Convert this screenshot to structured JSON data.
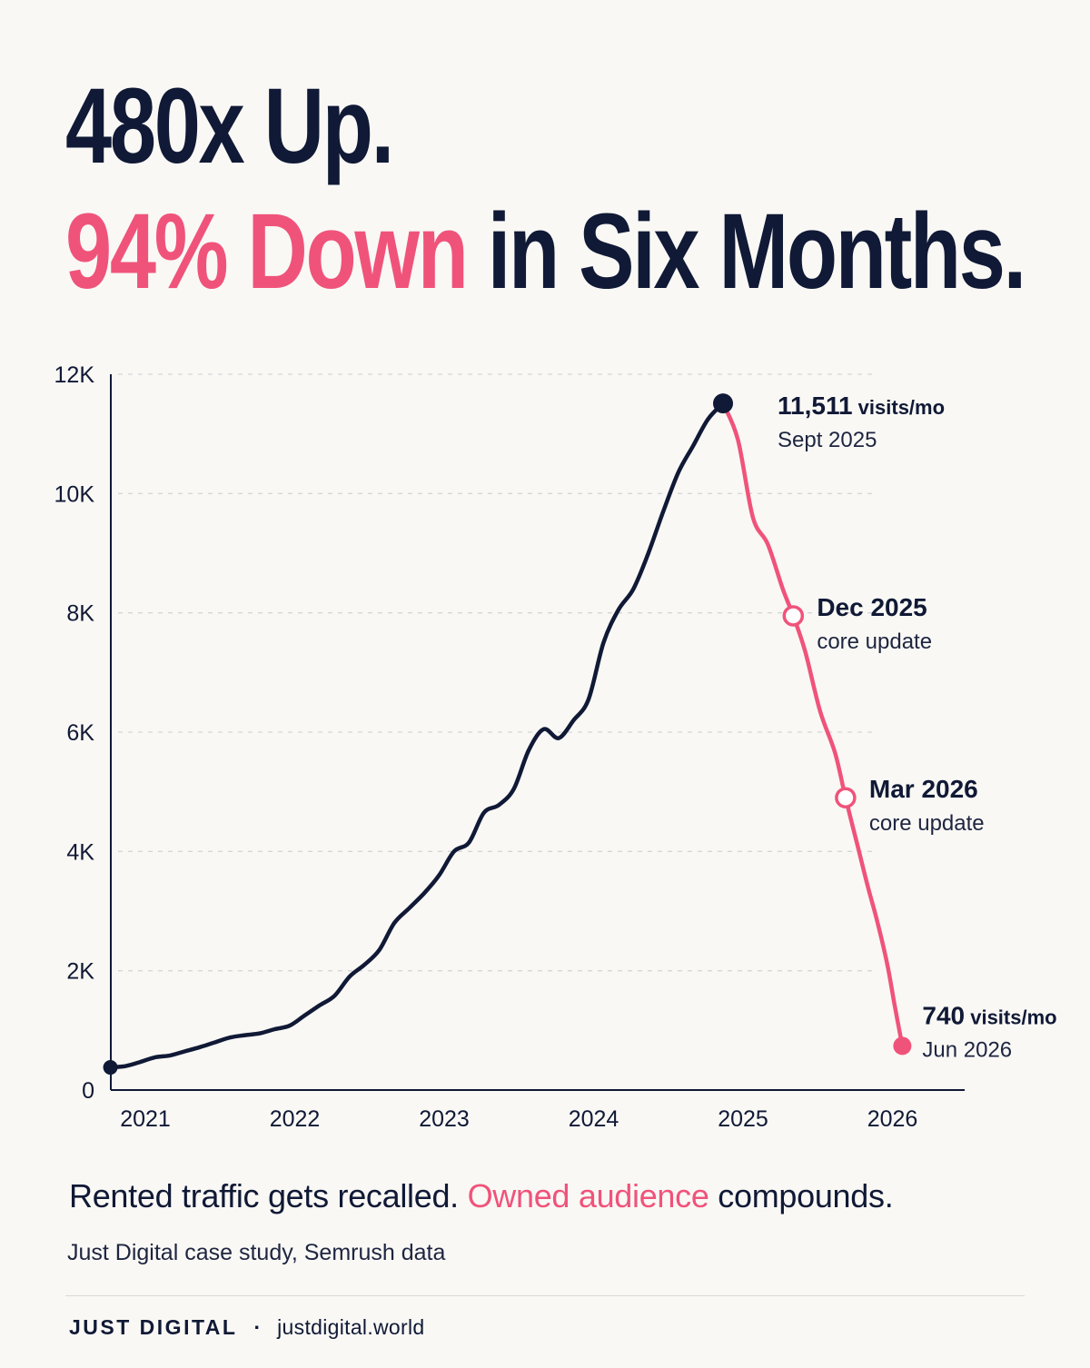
{
  "headline": {
    "line1": "480x Up.",
    "line2_accent": "94% Down",
    "line2_rest": " in Six Months."
  },
  "tagline": {
    "part1": "Rented traffic gets recalled. ",
    "accent": "Owned audience",
    "part2": " compounds."
  },
  "source": "Just Digital case study, Semrush data",
  "footer": {
    "brand": "JUST DIGITAL",
    "separator": "·",
    "url": "justdigital.world"
  },
  "colors": {
    "navy": "#101935",
    "accent": "#f0537a",
    "background": "#f9f8f5"
  },
  "chart_data": {
    "type": "line",
    "xlim": [
      2021,
      2026.35
    ],
    "ylim": [
      0,
      12000
    ],
    "grid": true,
    "x_ticks": [
      {
        "value": 2021,
        "label": "2021"
      },
      {
        "value": 2022,
        "label": "2022"
      },
      {
        "value": 2023,
        "label": "2023"
      },
      {
        "value": 2024,
        "label": "2024"
      },
      {
        "value": 2025,
        "label": "2025"
      },
      {
        "value": 2026,
        "label": "2026"
      }
    ],
    "y_ticks": [
      {
        "value": 0,
        "label": "0"
      },
      {
        "value": 2000,
        "label": "2K"
      },
      {
        "value": 4000,
        "label": "4K"
      },
      {
        "value": 6000,
        "label": "6K"
      },
      {
        "value": 8000,
        "label": "8K"
      },
      {
        "value": 10000,
        "label": "10K"
      },
      {
        "value": 12000,
        "label": "12K"
      }
    ],
    "series": [
      {
        "segment": "rise",
        "color": "#101935",
        "points": [
          [
            2020.9,
            380
          ],
          [
            2021.0,
            400
          ],
          [
            2021.1,
            470
          ],
          [
            2021.2,
            550
          ],
          [
            2021.3,
            580
          ],
          [
            2021.4,
            650
          ],
          [
            2021.5,
            720
          ],
          [
            2021.6,
            800
          ],
          [
            2021.7,
            880
          ],
          [
            2021.8,
            920
          ],
          [
            2021.9,
            950
          ],
          [
            2022.0,
            1020
          ],
          [
            2022.1,
            1080
          ],
          [
            2022.2,
            1250
          ],
          [
            2022.3,
            1420
          ],
          [
            2022.4,
            1580
          ],
          [
            2022.5,
            1900
          ],
          [
            2022.6,
            2100
          ],
          [
            2022.7,
            2350
          ],
          [
            2022.8,
            2800
          ],
          [
            2022.9,
            3050
          ],
          [
            2023.0,
            3300
          ],
          [
            2023.1,
            3600
          ],
          [
            2023.2,
            4000
          ],
          [
            2023.3,
            4150
          ],
          [
            2023.4,
            4650
          ],
          [
            2023.5,
            4780
          ],
          [
            2023.6,
            5050
          ],
          [
            2023.7,
            5700
          ],
          [
            2023.8,
            6050
          ],
          [
            2023.9,
            5900
          ],
          [
            2024.0,
            6200
          ],
          [
            2024.1,
            6550
          ],
          [
            2024.2,
            7500
          ],
          [
            2024.3,
            8050
          ],
          [
            2024.4,
            8400
          ],
          [
            2024.5,
            9000
          ],
          [
            2024.6,
            9700
          ],
          [
            2024.7,
            10350
          ],
          [
            2024.8,
            10800
          ],
          [
            2024.9,
            11250
          ],
          [
            2025.0,
            11511
          ]
        ]
      },
      {
        "segment": "decline",
        "color": "#f0537a",
        "points": [
          [
            2025.0,
            11511
          ],
          [
            2025.1,
            10900
          ],
          [
            2025.2,
            9600
          ],
          [
            2025.3,
            9150
          ],
          [
            2025.4,
            8400
          ],
          [
            2025.47,
            7950
          ],
          [
            2025.55,
            7350
          ],
          [
            2025.65,
            6350
          ],
          [
            2025.75,
            5650
          ],
          [
            2025.82,
            4900
          ],
          [
            2025.9,
            4100
          ],
          [
            2025.97,
            3400
          ],
          [
            2026.03,
            2850
          ],
          [
            2026.1,
            2100
          ],
          [
            2026.15,
            1400
          ],
          [
            2026.2,
            740
          ]
        ]
      }
    ],
    "annotations": [
      {
        "x": 2025.0,
        "y": 11511,
        "marker": "filled",
        "color": "#101935",
        "value": "11,511",
        "unit": " visits/mo",
        "label": "Sept 2025"
      },
      {
        "x": 2025.47,
        "y": 7950,
        "marker": "hollow",
        "color": "#f0537a",
        "value": "Dec 2025",
        "unit": "",
        "label": "core update"
      },
      {
        "x": 2025.82,
        "y": 4900,
        "marker": "hollow",
        "color": "#f0537a",
        "value": "Mar 2026",
        "unit": "",
        "label": "core update"
      },
      {
        "x": 2026.2,
        "y": 740,
        "marker": "filled",
        "color": "#f0537a",
        "value": "740",
        "unit": " visits/mo",
        "label": "Jun 2026"
      }
    ]
  }
}
